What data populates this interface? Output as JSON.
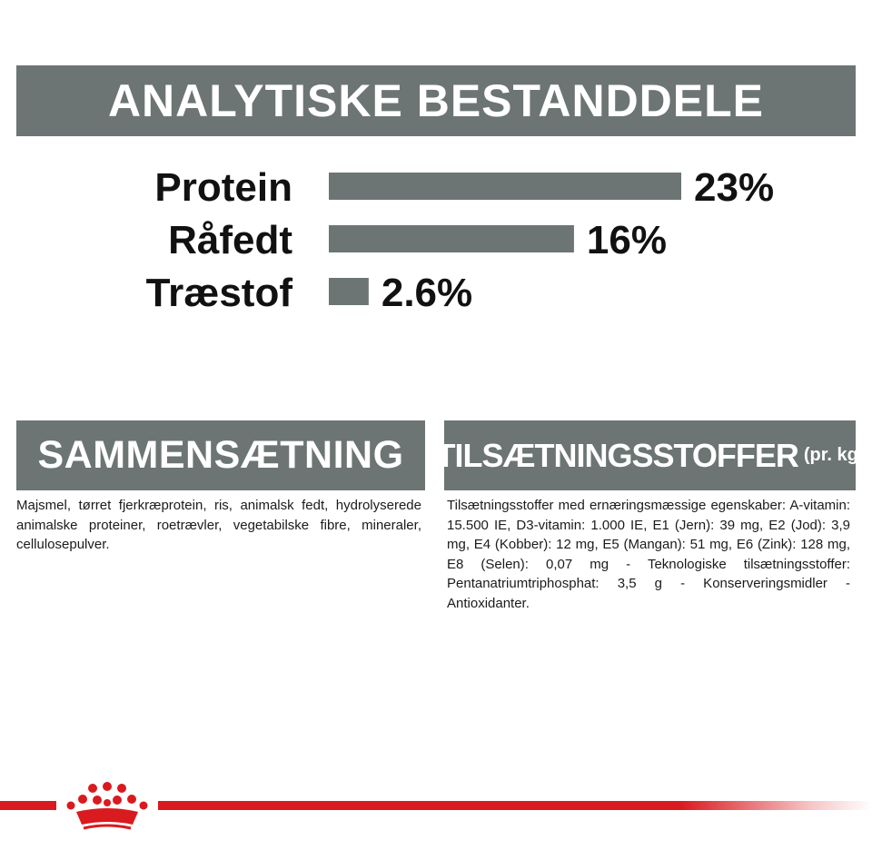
{
  "heading": "ANALYTISKE BESTANDDELE",
  "chart_data": {
    "type": "bar",
    "orientation": "horizontal",
    "categories": [
      "Protein",
      "Råfedt",
      "Træstof"
    ],
    "values": [
      23,
      16,
      2.6
    ],
    "value_labels": [
      "23%",
      "16%",
      "2.6%"
    ],
    "xlim": [
      0,
      23
    ],
    "grid": false,
    "bar_color": "#6c7573"
  },
  "composition": {
    "title": "SAMMENSÆTNING",
    "text": "Majsmel, tørret fjerkræprotein, ris, animalsk fedt, hydrolyserede animalske proteiner, roetrævler, vegetabilske fibre, mineraler, cellulosepulver."
  },
  "additives": {
    "title": "TILSÆTNINGSSTOFFER",
    "unit": "(pr. kg)",
    "text": "Tilsætningsstoffer med ernæringsmæssige egenskaber: A-vitamin: 15.500 IE, D3-vitamin: 1.000 IE, E1 (Jern): 39 mg, E2 (Jod): 3,9 mg, E4 (Kobber): 12 mg, E5 (Mangan): 51 mg, E6 (Zink): 128 mg, E8 (Selen): 0,07 mg - Teknologiske tilsætningsstoffer: Pentanatriumtriphosphat: 3,5 g - Konserveringsmidler - Antioxidanter."
  },
  "colors": {
    "banner": "#6c7573",
    "brand_red": "#d91a1f"
  },
  "logo_icon": "royal-canin-crown-icon"
}
